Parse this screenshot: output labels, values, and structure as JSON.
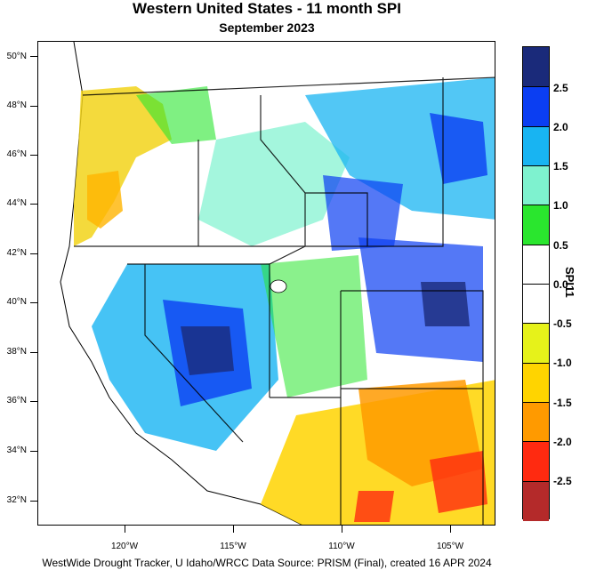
{
  "title": "Western United States - 11 month SPI",
  "subtitle": "September 2023",
  "footer": "WestWide Drought Tracker, U Idaho/WRCC Data Source: PRISM (Final), created 16 APR 2024",
  "colorbar": {
    "title": "SPI11",
    "labels": [
      "2.5",
      "2.0",
      "1.5",
      "1.0",
      "0.5",
      "0.0",
      "-0.5",
      "-1.0",
      "-1.5",
      "-2.0",
      "-2.5"
    ],
    "colors": [
      "#1a2a7a",
      "#0b3ef2",
      "#18b4f2",
      "#7ef2cf",
      "#2ae62e",
      "#ffffff",
      "#ffffff",
      "#e6f21a",
      "#ffd400",
      "#ff9a00",
      "#ff2a10",
      "#b42a2a"
    ]
  },
  "axes": {
    "lat_labels": [
      "50°N",
      "48°N",
      "46°N",
      "44°N",
      "42°N",
      "40°N",
      "38°N",
      "36°N",
      "34°N",
      "32°N"
    ],
    "lon_labels": [
      "120°W",
      "115°W",
      "110°W",
      "105°W"
    ]
  }
}
